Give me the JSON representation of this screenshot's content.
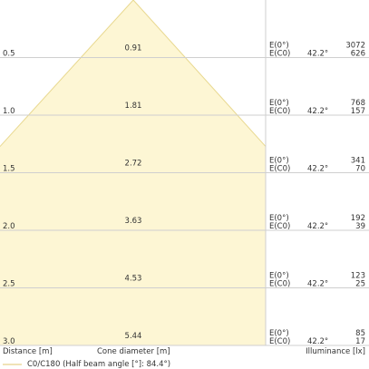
{
  "chart_data": {
    "type": "table",
    "x_label": "Distance [m]",
    "cone_label": "Cone diameter [m]",
    "illum_label": "Illuminance [lx]",
    "legend": "C0/C180 (Half beam angle [°]: 84.4°)",
    "row_label_e0": "E(0°)",
    "row_label_ec0": "E(C0)",
    "half_beam_angle": 84.4,
    "angle_label": "42.2°",
    "colors": {
      "cone": "#fdf6d4",
      "cone_edge": "#e8d88f",
      "grid": "#cfcfcf",
      "legend_line": "#e6d28c"
    },
    "rows": [
      {
        "distance": "0.5",
        "cone": "0.91",
        "e0": "3072",
        "ec0": "626"
      },
      {
        "distance": "1.0",
        "cone": "1.81",
        "e0": "768",
        "ec0": "157"
      },
      {
        "distance": "1.5",
        "cone": "2.72",
        "e0": "341",
        "ec0": "70"
      },
      {
        "distance": "2.0",
        "cone": "3.63",
        "e0": "192",
        "ec0": "39"
      },
      {
        "distance": "2.5",
        "cone": "4.53",
        "e0": "123",
        "ec0": "25"
      },
      {
        "distance": "3.0",
        "cone": "5.44",
        "e0": "85",
        "ec0": "17"
      }
    ]
  }
}
